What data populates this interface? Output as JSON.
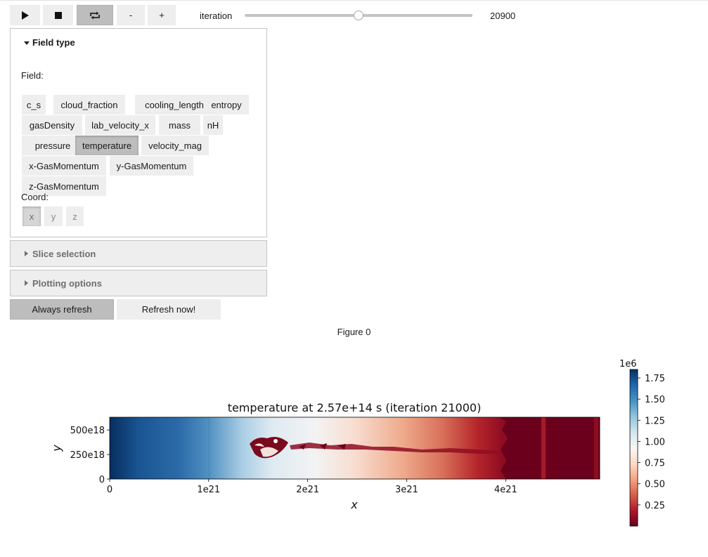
{
  "toolbar": {
    "play_icon": "play-icon",
    "stop_icon": "stop-icon",
    "loop_icon": "loop-icon",
    "minus_label": "-",
    "plus_label": "+",
    "iteration_label": "iteration",
    "iteration_value": "20900",
    "slider_fraction": 0.5
  },
  "field_panel": {
    "title": "Field type",
    "field_label": "Field:",
    "fields": [
      {
        "label": "c_s",
        "active": false
      },
      {
        "label": "cloud_fraction",
        "active": false
      },
      {
        "label": "cooling_length",
        "active": false
      },
      {
        "label": "entropy",
        "active": false
      },
      {
        "label": "gasDensity",
        "active": false
      },
      {
        "label": "lab_velocity_x",
        "active": false
      },
      {
        "label": "mass",
        "active": false
      },
      {
        "label": "nH",
        "active": false
      },
      {
        "label": "pressure",
        "active": false
      },
      {
        "label": "temperature",
        "active": true
      },
      {
        "label": "velocity_mag",
        "active": false
      },
      {
        "label": "x-GasMomentum",
        "active": false
      },
      {
        "label": "y-GasMomentum",
        "active": false
      },
      {
        "label": "z-GasMomentum",
        "active": false
      }
    ],
    "coord_label": "Coord:",
    "coords": [
      {
        "label": "x",
        "active": true
      },
      {
        "label": "y",
        "active": false
      },
      {
        "label": "z",
        "active": false
      }
    ]
  },
  "slice_panel": {
    "title": "Slice selection"
  },
  "plot_panel": {
    "title": "Plotting options"
  },
  "refresh": {
    "always_label": "Always refresh",
    "now_label": "Refresh now!"
  },
  "figure": {
    "label": "Figure 0",
    "title": "temperature at 2.57e+14 s   (iteration 21000)",
    "xlabel": "x",
    "ylabel": "y",
    "xticks": [
      {
        "label": "0",
        "value": 0
      },
      {
        "label": "1e21",
        "value": 1e+21
      },
      {
        "label": "2e21",
        "value": 2e+21
      },
      {
        "label": "3e21",
        "value": 3e+21
      },
      {
        "label": "4e21",
        "value": 4e+21
      }
    ],
    "yticks": [
      {
        "label": "0",
        "value": 0
      },
      {
        "label": "250e18",
        "value": 2.5e+20
      },
      {
        "label": "500e18",
        "value": 5e+20
      }
    ],
    "colorbar": {
      "multiplier": "1e6",
      "ticks": [
        {
          "label": "1.75",
          "value": 1.75
        },
        {
          "label": "1.50",
          "value": 1.5
        },
        {
          "label": "1.25",
          "value": 1.25
        },
        {
          "label": "1.00",
          "value": 1.0
        },
        {
          "label": "0.75",
          "value": 0.75
        },
        {
          "label": "0.50",
          "value": 0.5
        },
        {
          "label": "0.25",
          "value": 0.25
        }
      ]
    }
  },
  "chart_data": {
    "type": "heatmap",
    "title": "temperature at 2.57e+14 s   (iteration 21000)",
    "xlabel": "x",
    "ylabel": "y",
    "xlim": [
      0,
      4.95e+21
    ],
    "ylim": [
      0,
      6.3e+20
    ],
    "colormap": "RdBu",
    "clim": [
      0.0,
      1.85
    ],
    "colorbar_multiplier": "1e6"
  }
}
